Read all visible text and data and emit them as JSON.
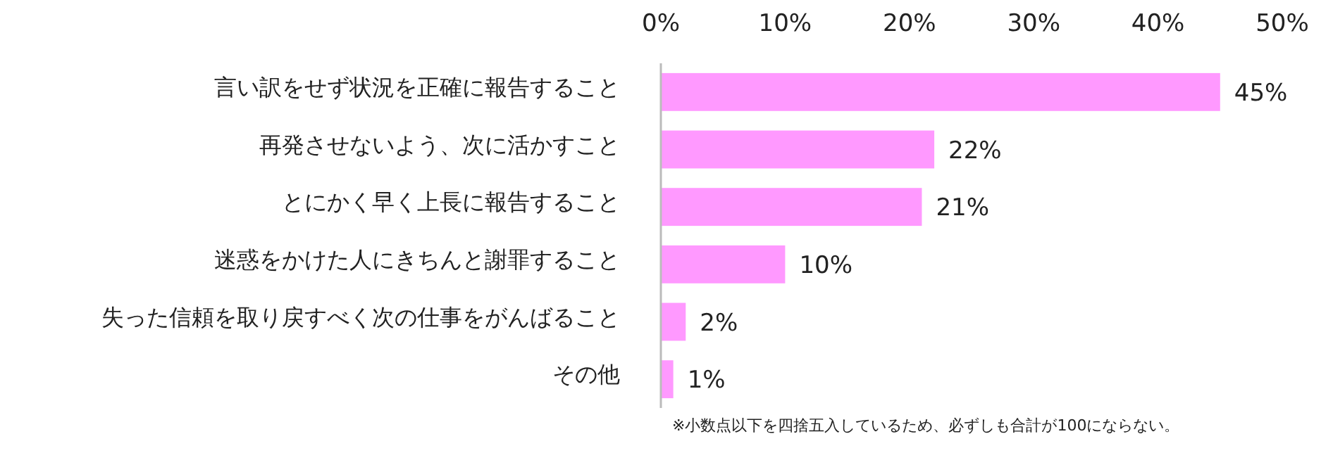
{
  "chart_data": {
    "type": "bar",
    "orientation": "horizontal",
    "categories": [
      "言い訳をせず状況を正確に報告すること",
      "再発させないよう、次に活かすこと",
      "とにかく早く上長に報告すること",
      "迷惑をかけた人にきちんと謝罪すること",
      "失った信頼を取り戻すべく次の仕事をがんばること",
      "その他"
    ],
    "values": [
      45,
      22,
      21,
      10,
      2,
      1
    ],
    "value_labels": [
      "45%",
      "22%",
      "21%",
      "10%",
      "2%",
      "1%"
    ],
    "color": "#ff99ff",
    "xlim": [
      0,
      50
    ],
    "xticks": [
      {
        "value": 0,
        "label": "0%"
      },
      {
        "value": 10,
        "label": "10%"
      },
      {
        "value": 20,
        "label": "20%"
      },
      {
        "value": 30,
        "label": "30%"
      },
      {
        "value": 40,
        "label": "40%"
      },
      {
        "value": 50,
        "label": "50%"
      }
    ],
    "grid": false,
    "annotations": [
      "※小数点以下を四捨五入しているため、必ずしも合計が100にならない。"
    ]
  }
}
